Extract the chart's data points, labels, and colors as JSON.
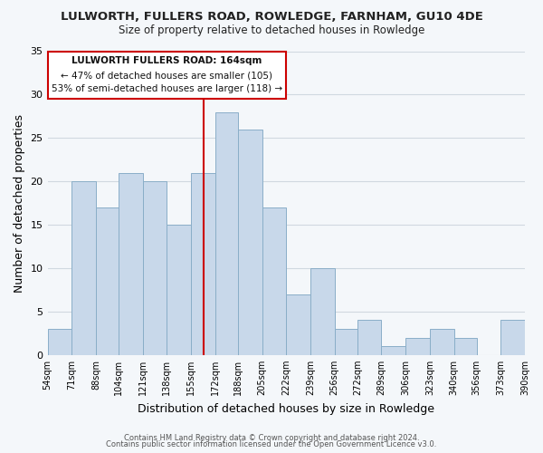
{
  "title": "LULWORTH, FULLERS ROAD, ROWLEDGE, FARNHAM, GU10 4DE",
  "subtitle": "Size of property relative to detached houses in Rowledge",
  "xlabel": "Distribution of detached houses by size in Rowledge",
  "ylabel": "Number of detached properties",
  "bar_color": "#c8d8ea",
  "bar_edge_color": "#8aaec8",
  "vline_x": 164,
  "vline_color": "#cc0000",
  "annotation_title": "LULWORTH FULLERS ROAD: 164sqm",
  "annotation_line1": "← 47% of detached houses are smaller (105)",
  "annotation_line2": "53% of semi-detached houses are larger (118) →",
  "annotation_box_color": "#ffffff",
  "annotation_box_edge": "#cc0000",
  "bins": [
    54,
    71,
    88,
    104,
    121,
    138,
    155,
    172,
    188,
    205,
    222,
    239,
    256,
    272,
    289,
    306,
    323,
    340,
    356,
    373,
    390
  ],
  "counts": [
    3,
    20,
    17,
    21,
    20,
    15,
    21,
    28,
    26,
    17,
    7,
    10,
    3,
    4,
    1,
    2,
    3,
    2,
    0,
    4
  ],
  "tick_labels": [
    "54sqm",
    "71sqm",
    "88sqm",
    "104sqm",
    "121sqm",
    "138sqm",
    "155sqm",
    "172sqm",
    "188sqm",
    "205sqm",
    "222sqm",
    "239sqm",
    "256sqm",
    "272sqm",
    "289sqm",
    "306sqm",
    "323sqm",
    "340sqm",
    "356sqm",
    "373sqm",
    "390sqm"
  ],
  "ylim": [
    0,
    35
  ],
  "yticks": [
    0,
    5,
    10,
    15,
    20,
    25,
    30,
    35
  ],
  "footer1": "Contains HM Land Registry data © Crown copyright and database right 2024.",
  "footer2": "Contains public sector information licensed under the Open Government Licence v3.0.",
  "background_color": "#f4f7fa",
  "grid_color": "#d0d8e0"
}
